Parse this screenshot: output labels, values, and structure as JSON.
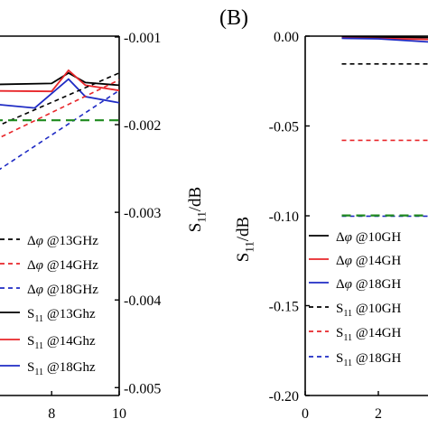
{
  "panel_b_label": "(B)",
  "chart_data": [
    {
      "panel": "A",
      "type": "line",
      "title": "",
      "xlabel": "",
      "x_ticks": [
        "8",
        "10"
      ],
      "xlim": [
        5,
        10
      ],
      "right_axis": {
        "label_main": "S",
        "label_sub": "11",
        "label_unit": "/dB",
        "ylim": [
          -0.00509,
          -0.00099
        ],
        "ticks": [
          "-0.001",
          "-0.002",
          "-0.003",
          "-0.004",
          "-0.005"
        ],
        "tick_values": [
          -0.001,
          -0.002,
          -0.003,
          -0.004,
          -0.005
        ]
      },
      "legend_placement": "bottom-right",
      "legend": [
        {
          "prefix": "Δ",
          "phi": "φ",
          "label": " @13GHz",
          "color": "#000000",
          "dash": true
        },
        {
          "prefix": "Δ",
          "phi": "φ",
          "label": " @14GHz",
          "color": "#e8262a",
          "dash": true
        },
        {
          "prefix": "Δ",
          "phi": "φ",
          "label": " @18GHz",
          "color": "#1f2bc4",
          "dash": true
        },
        {
          "prefix": "S",
          "sub": "11",
          "label": " @13Ghz",
          "color": "#000000",
          "dash": false
        },
        {
          "prefix": "S",
          "sub": "11",
          "label": " @14Ghz",
          "color": "#e8262a",
          "dash": false
        },
        {
          "prefix": "S",
          "sub": "11",
          "label": " @18Ghz",
          "color": "#1f2bc4",
          "dash": false
        }
      ],
      "series": [
        {
          "color": "#000000",
          "dash": false,
          "points": [
            [
              5,
              -0.00155
            ],
            [
              8,
              -0.00153
            ],
            [
              8.5,
              -0.00141
            ],
            [
              9,
              -0.00152
            ],
            [
              10,
              -0.00155
            ]
          ]
        },
        {
          "color": "#e8262a",
          "dash": false,
          "points": [
            [
              5,
              -0.00161
            ],
            [
              8,
              -0.00162
            ],
            [
              8.5,
              -0.00138
            ],
            [
              9,
              -0.00155
            ],
            [
              10,
              -0.00161
            ]
          ]
        },
        {
          "color": "#1f2bc4",
          "dash": false,
          "points": [
            [
              5,
              -0.00172
            ],
            [
              7.5,
              -0.00181
            ],
            [
              8.5,
              -0.00148
            ],
            [
              9,
              -0.00168
            ],
            [
              10,
              -0.00175
            ]
          ]
        },
        {
          "color": "#000000",
          "dash": true,
          "points": [
            [
              5,
              -0.00225
            ],
            [
              10,
              -0.00141
            ]
          ]
        },
        {
          "color": "#e8262a",
          "dash": true,
          "points": [
            [
              5,
              -0.00242
            ],
            [
              10,
              -0.00149
            ]
          ]
        },
        {
          "color": "#1f2bc4",
          "dash": true,
          "points": [
            [
              5,
              -0.00288
            ],
            [
              10,
              -0.00161
            ]
          ]
        },
        {
          "color": "#1f8a1f",
          "dash": true,
          "points": [
            [
              5,
              -0.00195
            ],
            [
              10,
              -0.00195
            ]
          ]
        }
      ]
    },
    {
      "panel": "B",
      "type": "line",
      "title": "",
      "xlabel": "",
      "x_ticks": [
        "0",
        "2"
      ],
      "x_tick_values": [
        0,
        2
      ],
      "xlim": [
        0,
        4
      ],
      "ylabel_main": "S",
      "ylabel_sub": "11",
      "ylabel_unit": "/dB",
      "ylim": [
        -0.2,
        0.0
      ],
      "y_ticks": [
        "0.00",
        "-0.05",
        "-0.10",
        "-0.15",
        "-0.20"
      ],
      "y_tick_values": [
        0.0,
        -0.05,
        -0.1,
        -0.15,
        -0.2
      ],
      "legend_placement": "bottom-right",
      "legend": [
        {
          "prefix": "Δ",
          "phi": "φ",
          "label": " @10GH",
          "color": "#000000",
          "dash": false
        },
        {
          "prefix": "Δ",
          "phi": "φ",
          "label": " @14GH",
          "color": "#e8262a",
          "dash": false
        },
        {
          "prefix": "Δ",
          "phi": "φ",
          "label": " @18GH",
          "color": "#1f2bc4",
          "dash": false
        },
        {
          "prefix": "S",
          "sub": "11",
          "label": " @10GH",
          "color": "#000000",
          "dash": true
        },
        {
          "prefix": "S",
          "sub": "11",
          "label": " @14GH",
          "color": "#e8262a",
          "dash": true
        },
        {
          "prefix": "S",
          "sub": "11",
          "label": " @18GH",
          "color": "#1f2bc4",
          "dash": true
        }
      ],
      "series": [
        {
          "color": "#000000",
          "dash": false,
          "points": [
            [
              1,
              -0.0005
            ],
            [
              4,
              -0.0008
            ]
          ]
        },
        {
          "color": "#e8262a",
          "dash": false,
          "points": [
            [
              1,
              -0.001
            ],
            [
              4,
              -0.002
            ]
          ]
        },
        {
          "color": "#1f2bc4",
          "dash": false,
          "points": [
            [
              1,
              -0.0012
            ],
            [
              2,
              -0.0015
            ],
            [
              4,
              -0.004
            ]
          ]
        },
        {
          "color": "#000000",
          "dash": true,
          "points": [
            [
              1,
              -0.0155
            ],
            [
              4,
              -0.0155
            ]
          ]
        },
        {
          "color": "#e8262a",
          "dash": true,
          "points": [
            [
              1,
              -0.058
            ],
            [
              4,
              -0.058
            ]
          ]
        },
        {
          "color": "#1f2bc4",
          "dash": true,
          "points": [
            [
              1,
              -0.1002
            ],
            [
              4,
              -0.1002
            ]
          ]
        },
        {
          "color": "#1f8a1f",
          "dash": true,
          "points": [
            [
              1,
              -0.0998
            ],
            [
              4,
              -0.0998
            ]
          ]
        }
      ]
    }
  ]
}
